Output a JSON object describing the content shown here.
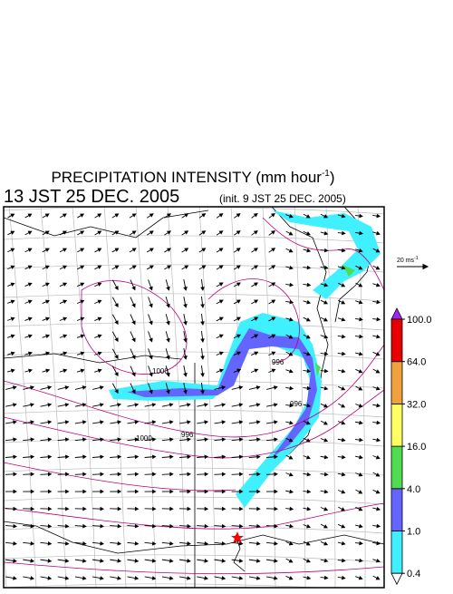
{
  "header": {
    "title": "PRECIPITATION INTENSITY (mm hour",
    "title_exponent": "-1",
    "title_close": ")",
    "valid_time": "13 JST 25 DEC. 2005",
    "init_time": "(init. 9 JST 25 DEC. 2005)"
  },
  "wind_scale": {
    "label": "20 ms",
    "exponent": "-1"
  },
  "colorbar": {
    "colors": [
      "#40f0ff",
      "#6464ff",
      "#50dc50",
      "#ffff64",
      "#f0a03c",
      "#e60000"
    ],
    "over_color": "#a028f0",
    "under_color": "#ffffff",
    "ticks": [
      {
        "value": 0.4,
        "label": "0.4"
      },
      {
        "value": 1,
        "label": "1.0"
      },
      {
        "value": 4,
        "label": "4.0"
      },
      {
        "value": 16,
        "label": "16.0"
      },
      {
        "value": 32,
        "label": "32.0"
      },
      {
        "value": 64,
        "label": "64.0"
      },
      {
        "value": 100,
        "label": "100.0"
      }
    ]
  },
  "contour_labels": [
    "1000",
    "996",
    "996",
    "996",
    "1000"
  ]
}
